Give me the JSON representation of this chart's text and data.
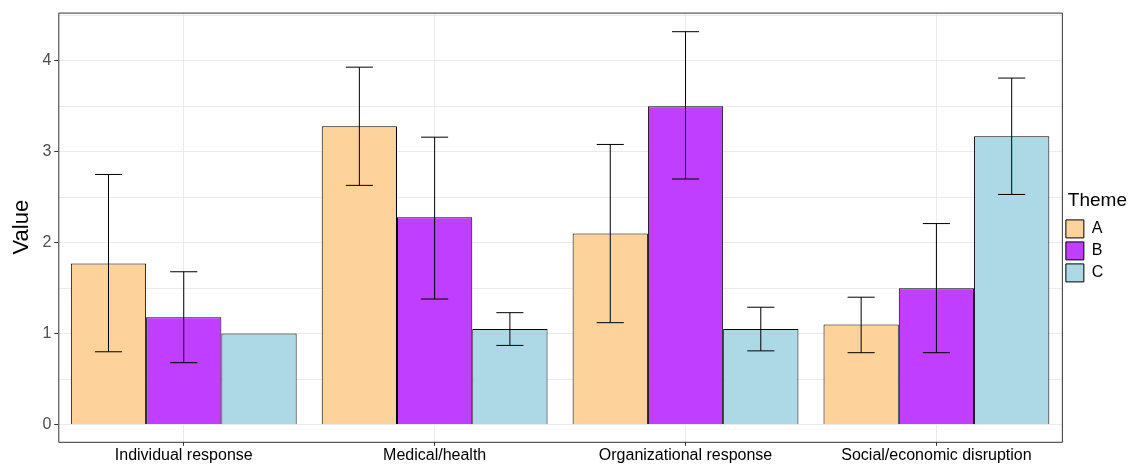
{
  "chart_data": {
    "type": "bar",
    "ylabel": "Value",
    "legend_title": "Theme",
    "categories": [
      "Individual response",
      "Medical/health",
      "Organizational response",
      "Social/economic disruption"
    ],
    "series": [
      {
        "name": "A",
        "color": "#fed29b",
        "values": [
          1.77,
          3.28,
          2.1,
          1.1
        ],
        "errors": [
          [
            0.8,
            2.75
          ],
          [
            2.63,
            3.93
          ],
          [
            1.12,
            3.08
          ],
          [
            0.79,
            1.4
          ]
        ]
      },
      {
        "name": "B",
        "color": "#bf3eff",
        "values": [
          1.18,
          2.28,
          3.5,
          1.5
        ],
        "errors": [
          [
            0.68,
            1.68
          ],
          [
            1.38,
            3.16
          ],
          [
            2.7,
            4.32
          ],
          [
            0.79,
            2.21
          ]
        ]
      },
      {
        "name": "C",
        "color": "#add8e6",
        "values": [
          1.0,
          1.05,
          1.05,
          3.17
        ],
        "errors": [
          null,
          [
            0.87,
            1.23
          ],
          [
            0.81,
            1.29
          ],
          [
            2.53,
            3.81
          ]
        ]
      }
    ],
    "ylim": [
      -0.19,
      4.53
    ],
    "yticks": [
      0,
      {
        "value": 0.5,
        "label": null
      },
      1,
      {
        "value": 1.5,
        "label": null
      },
      2,
      {
        "value": 2.5,
        "label": null
      },
      3,
      {
        "value": 3.5,
        "label": null
      },
      4,
      {
        "value": 4.5,
        "label": null
      }
    ],
    "grid": true,
    "legend": "right"
  }
}
